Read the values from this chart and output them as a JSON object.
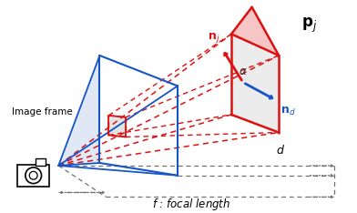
{
  "bg_color": "#ffffff",
  "blue": "#1555c8",
  "red": "#dd1111",
  "dgray": "#707070",
  "lgray": "#c8c8c8"
}
